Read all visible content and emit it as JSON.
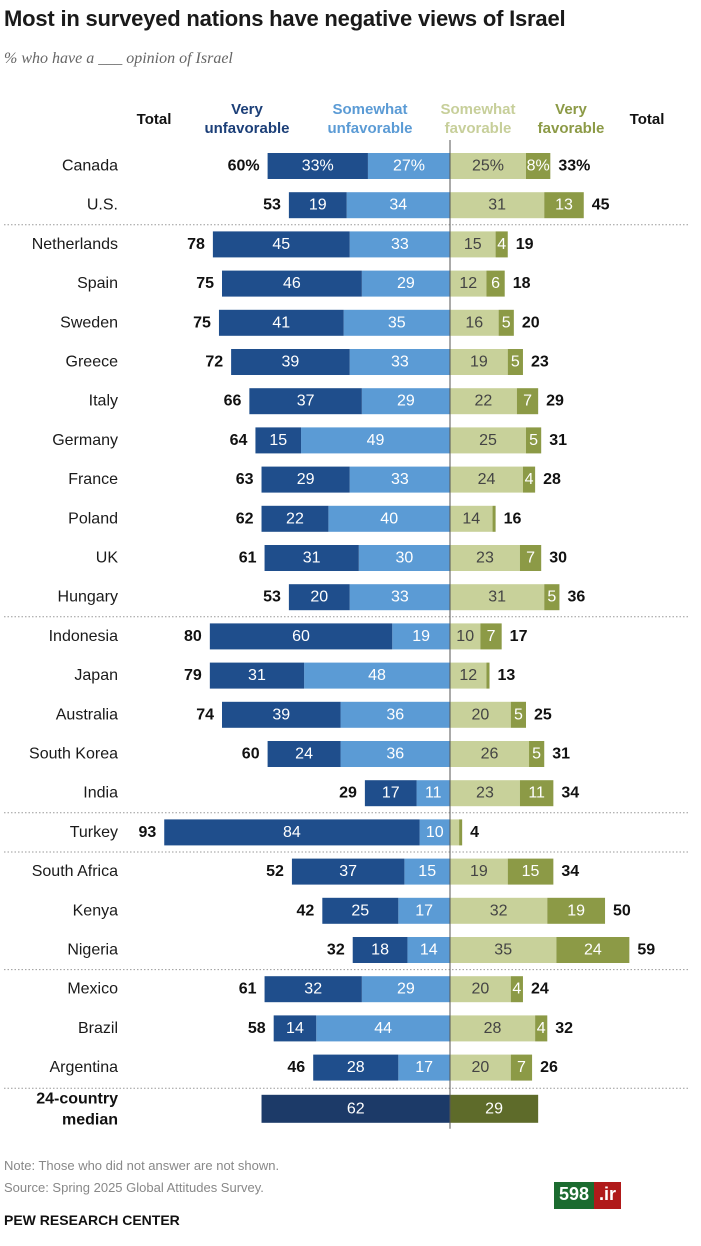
{
  "title": "Most in surveyed nations have negative views of Israel",
  "subtitle": "% who have a ___ opinion of Israel",
  "headers": {
    "total_left": "Total",
    "very_unfavorable": [
      "Very",
      "unfavorable"
    ],
    "somewhat_unfavorable": [
      "Somewhat",
      "unfavorable"
    ],
    "somewhat_favorable": [
      "Somewhat",
      "favorable"
    ],
    "very_favorable": [
      "Very",
      "favorable"
    ],
    "total_right": "Total"
  },
  "colors": {
    "very_unfavorable": "#1f4e8c",
    "somewhat_unfavorable": "#5b9bd5",
    "somewhat_favorable": "#c8d19a",
    "very_favorable": "#8c9a46",
    "median_unfavorable": "#1c3a68",
    "median_favorable": "#5e6b2a"
  },
  "chart_data": {
    "type": "bar",
    "subtype": "diverging stacked bar",
    "title": "Most in surveyed nations have negative views of Israel",
    "subtitle": "% who have a ___ opinion of Israel",
    "series_names": [
      "Very unfavorable",
      "Somewhat unfavorable",
      "Somewhat favorable",
      "Very favorable"
    ],
    "rows": [
      {
        "country": "Canada",
        "total_unfav": "60%",
        "very_unfav": "33%",
        "somewhat_unfav": "27%",
        "somewhat_fav": "25%",
        "very_fav": "8%",
        "total_fav": "33%",
        "group": 1
      },
      {
        "country": "U.S.",
        "total_unfav": "53",
        "very_unfav": "19",
        "somewhat_unfav": "34",
        "somewhat_fav": "31",
        "very_fav": "13",
        "total_fav": "45",
        "group": 1
      },
      {
        "country": "Netherlands",
        "total_unfav": "78",
        "very_unfav": "45",
        "somewhat_unfav": "33",
        "somewhat_fav": "15",
        "very_fav": "4",
        "total_fav": "19",
        "group": 2
      },
      {
        "country": "Spain",
        "total_unfav": "75",
        "very_unfav": "46",
        "somewhat_unfav": "29",
        "somewhat_fav": "12",
        "very_fav": "6",
        "total_fav": "18",
        "group": 2
      },
      {
        "country": "Sweden",
        "total_unfav": "75",
        "very_unfav": "41",
        "somewhat_unfav": "35",
        "somewhat_fav": "16",
        "very_fav": "5",
        "total_fav": "20",
        "group": 2
      },
      {
        "country": "Greece",
        "total_unfav": "72",
        "very_unfav": "39",
        "somewhat_unfav": "33",
        "somewhat_fav": "19",
        "very_fav": "5",
        "total_fav": "23",
        "group": 2
      },
      {
        "country": "Italy",
        "total_unfav": "66",
        "very_unfav": "37",
        "somewhat_unfav": "29",
        "somewhat_fav": "22",
        "very_fav": "7",
        "total_fav": "29",
        "group": 2
      },
      {
        "country": "Germany",
        "total_unfav": "64",
        "very_unfav": "15",
        "somewhat_unfav": "49",
        "somewhat_fav": "25",
        "very_fav": "5",
        "total_fav": "31",
        "group": 2
      },
      {
        "country": "France",
        "total_unfav": "63",
        "very_unfav": "29",
        "somewhat_unfav": "33",
        "somewhat_fav": "24",
        "very_fav": "4",
        "total_fav": "28",
        "group": 2
      },
      {
        "country": "Poland",
        "total_unfav": "62",
        "very_unfav": "22",
        "somewhat_unfav": "40",
        "somewhat_fav": "14",
        "very_fav": "1",
        "total_fav": "16",
        "group": 2
      },
      {
        "country": "UK",
        "total_unfav": "61",
        "very_unfav": "31",
        "somewhat_unfav": "30",
        "somewhat_fav": "23",
        "very_fav": "7",
        "total_fav": "30",
        "group": 2
      },
      {
        "country": "Hungary",
        "total_unfav": "53",
        "very_unfav": "20",
        "somewhat_unfav": "33",
        "somewhat_fav": "31",
        "very_fav": "5",
        "total_fav": "36",
        "group": 2
      },
      {
        "country": "Indonesia",
        "total_unfav": "80",
        "very_unfav": "60",
        "somewhat_unfav": "19",
        "somewhat_fav": "10",
        "very_fav": "7",
        "total_fav": "17",
        "group": 3
      },
      {
        "country": "Japan",
        "total_unfav": "79",
        "very_unfav": "31",
        "somewhat_unfav": "48",
        "somewhat_fav": "12",
        "very_fav": "1",
        "total_fav": "13",
        "group": 3
      },
      {
        "country": "Australia",
        "total_unfav": "74",
        "very_unfav": "39",
        "somewhat_unfav": "36",
        "somewhat_fav": "20",
        "very_fav": "5",
        "total_fav": "25",
        "group": 3
      },
      {
        "country": "South Korea",
        "total_unfav": "60",
        "very_unfav": "24",
        "somewhat_unfav": "36",
        "somewhat_fav": "26",
        "very_fav": "5",
        "total_fav": "31",
        "group": 3
      },
      {
        "country": "India",
        "total_unfav": "29",
        "very_unfav": "17",
        "somewhat_unfav": "11",
        "somewhat_fav": "23",
        "very_fav": "11",
        "total_fav": "34",
        "group": 3
      },
      {
        "country": "Turkey",
        "total_unfav": "93",
        "very_unfav": "84",
        "somewhat_unfav": "10",
        "somewhat_fav": "3",
        "very_fav": "1",
        "total_fav": "4",
        "group": 4
      },
      {
        "country": "South Africa",
        "total_unfav": "52",
        "very_unfav": "37",
        "somewhat_unfav": "15",
        "somewhat_fav": "19",
        "very_fav": "15",
        "total_fav": "34",
        "group": 5
      },
      {
        "country": "Kenya",
        "total_unfav": "42",
        "very_unfav": "25",
        "somewhat_unfav": "17",
        "somewhat_fav": "32",
        "very_fav": "19",
        "total_fav": "50",
        "group": 5
      },
      {
        "country": "Nigeria",
        "total_unfav": "32",
        "very_unfav": "18",
        "somewhat_unfav": "14",
        "somewhat_fav": "35",
        "very_fav": "24",
        "total_fav": "59",
        "group": 5
      },
      {
        "country": "Mexico",
        "total_unfav": "61",
        "very_unfav": "32",
        "somewhat_unfav": "29",
        "somewhat_fav": "20",
        "very_fav": "4",
        "total_fav": "24",
        "group": 6
      },
      {
        "country": "Brazil",
        "total_unfav": "58",
        "very_unfav": "14",
        "somewhat_unfav": "44",
        "somewhat_fav": "28",
        "very_fav": "4",
        "total_fav": "32",
        "group": 6
      },
      {
        "country": "Argentina",
        "total_unfav": "46",
        "very_unfav": "28",
        "somewhat_unfav": "17",
        "somewhat_fav": "20",
        "very_fav": "7",
        "total_fav": "26",
        "group": 6
      }
    ],
    "median": {
      "label": [
        "24-country",
        "median"
      ],
      "unfavorable": "62",
      "favorable": "29"
    },
    "value_labels_hidden": [
      "Poland.very_fav",
      "Japan.very_fav",
      "Turkey.somewhat_fav",
      "Turkey.very_fav"
    ]
  },
  "footer": {
    "note": "Note: Those who did not answer are not shown.",
    "source": "Source: Spring 2025 Global Attitudes Survey.",
    "org": "PEW RESEARCH CENTER"
  },
  "watermark": {
    "part1": "598",
    "part2": ".ir"
  }
}
